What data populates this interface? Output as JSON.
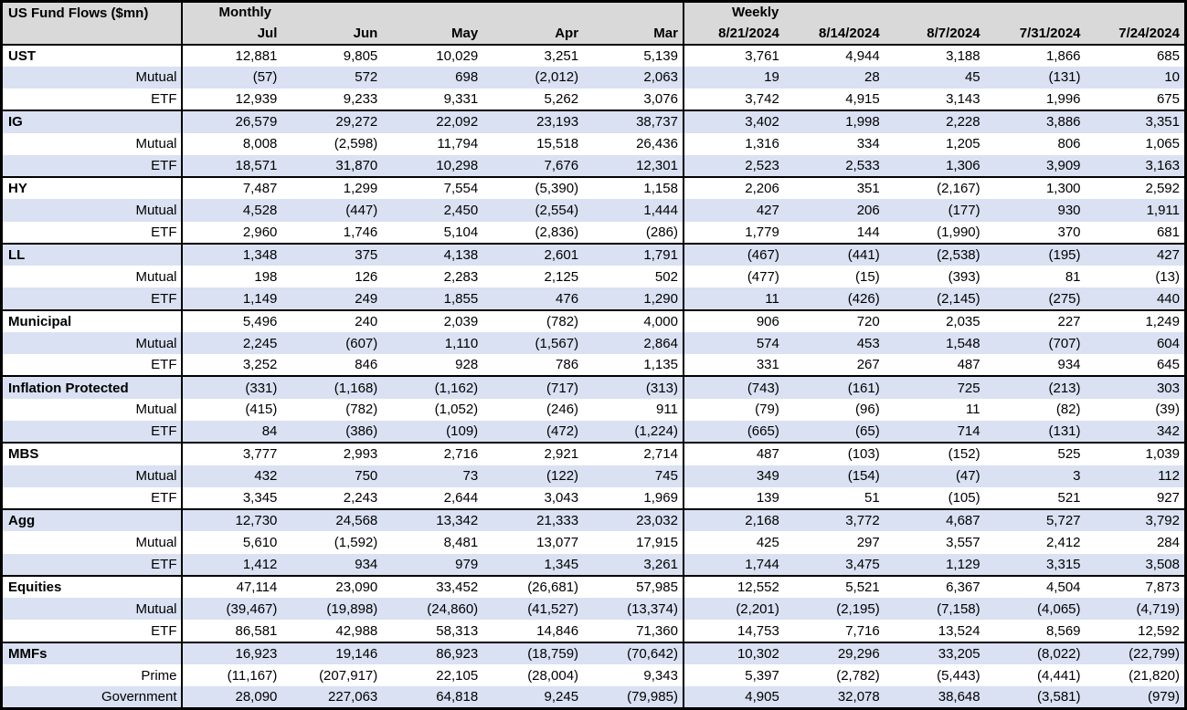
{
  "colors": {
    "stripe": "#D9E1F2",
    "header_bg": "#D9D9D9",
    "text": "#000000",
    "border": "#000000"
  },
  "chart_data": {
    "type": "table",
    "title": "US Fund Flows ($mn)",
    "column_groups": [
      {
        "label": "Monthly",
        "columns": [
          "Jul",
          "Jun",
          "May",
          "Apr",
          "Mar"
        ]
      },
      {
        "label": "Weekly",
        "columns": [
          "8/21/2024",
          "8/14/2024",
          "8/7/2024",
          "7/31/2024",
          "7/24/2024"
        ]
      }
    ],
    "groups": [
      {
        "name": "UST",
        "total": [
          "12,881",
          "9,805",
          "10,029",
          "3,251",
          "5,139",
          "3,761",
          "4,944",
          "3,188",
          "1,866",
          "685"
        ],
        "rows": [
          {
            "label": "Mutual",
            "values": [
              "(57)",
              "572",
              "698",
              "(2,012)",
              "2,063",
              "19",
              "28",
              "45",
              "(131)",
              "10"
            ]
          },
          {
            "label": "ETF",
            "values": [
              "12,939",
              "9,233",
              "9,331",
              "5,262",
              "3,076",
              "3,742",
              "4,915",
              "3,143",
              "1,996",
              "675"
            ]
          }
        ]
      },
      {
        "name": "IG",
        "total": [
          "26,579",
          "29,272",
          "22,092",
          "23,193",
          "38,737",
          "3,402",
          "1,998",
          "2,228",
          "3,886",
          "3,351"
        ],
        "rows": [
          {
            "label": "Mutual",
            "values": [
              "8,008",
              "(2,598)",
              "11,794",
              "15,518",
              "26,436",
              "1,316",
              "334",
              "1,205",
              "806",
              "1,065"
            ]
          },
          {
            "label": "ETF",
            "values": [
              "18,571",
              "31,870",
              "10,298",
              "7,676",
              "12,301",
              "2,523",
              "2,533",
              "1,306",
              "3,909",
              "3,163"
            ]
          }
        ]
      },
      {
        "name": "HY",
        "total": [
          "7,487",
          "1,299",
          "7,554",
          "(5,390)",
          "1,158",
          "2,206",
          "351",
          "(2,167)",
          "1,300",
          "2,592"
        ],
        "rows": [
          {
            "label": "Mutual",
            "values": [
              "4,528",
              "(447)",
              "2,450",
              "(2,554)",
              "1,444",
              "427",
              "206",
              "(177)",
              "930",
              "1,911"
            ]
          },
          {
            "label": "ETF",
            "values": [
              "2,960",
              "1,746",
              "5,104",
              "(2,836)",
              "(286)",
              "1,779",
              "144",
              "(1,990)",
              "370",
              "681"
            ]
          }
        ]
      },
      {
        "name": "LL",
        "total": [
          "1,348",
          "375",
          "4,138",
          "2,601",
          "1,791",
          "(467)",
          "(441)",
          "(2,538)",
          "(195)",
          "427"
        ],
        "rows": [
          {
            "label": "Mutual",
            "values": [
              "198",
              "126",
              "2,283",
              "2,125",
              "502",
              "(477)",
              "(15)",
              "(393)",
              "81",
              "(13)"
            ]
          },
          {
            "label": "ETF",
            "values": [
              "1,149",
              "249",
              "1,855",
              "476",
              "1,290",
              "11",
              "(426)",
              "(2,145)",
              "(275)",
              "440"
            ]
          }
        ]
      },
      {
        "name": "Municipal",
        "total": [
          "5,496",
          "240",
          "2,039",
          "(782)",
          "4,000",
          "906",
          "720",
          "2,035",
          "227",
          "1,249"
        ],
        "rows": [
          {
            "label": "Mutual",
            "values": [
              "2,245",
              "(607)",
              "1,110",
              "(1,567)",
              "2,864",
              "574",
              "453",
              "1,548",
              "(707)",
              "604"
            ]
          },
          {
            "label": "ETF",
            "values": [
              "3,252",
              "846",
              "928",
              "786",
              "1,135",
              "331",
              "267",
              "487",
              "934",
              "645"
            ]
          }
        ]
      },
      {
        "name": "Inflation Protected",
        "total": [
          "(331)",
          "(1,168)",
          "(1,162)",
          "(717)",
          "(313)",
          "(743)",
          "(161)",
          "725",
          "(213)",
          "303"
        ],
        "rows": [
          {
            "label": "Mutual",
            "values": [
              "(415)",
              "(782)",
              "(1,052)",
              "(246)",
              "911",
              "(79)",
              "(96)",
              "11",
              "(82)",
              "(39)"
            ]
          },
          {
            "label": "ETF",
            "values": [
              "84",
              "(386)",
              "(109)",
              "(472)",
              "(1,224)",
              "(665)",
              "(65)",
              "714",
              "(131)",
              "342"
            ]
          }
        ]
      },
      {
        "name": "MBS",
        "total": [
          "3,777",
          "2,993",
          "2,716",
          "2,921",
          "2,714",
          "487",
          "(103)",
          "(152)",
          "525",
          "1,039"
        ],
        "rows": [
          {
            "label": "Mutual",
            "values": [
              "432",
              "750",
              "73",
              "(122)",
              "745",
              "349",
              "(154)",
              "(47)",
              "3",
              "112"
            ]
          },
          {
            "label": "ETF",
            "values": [
              "3,345",
              "2,243",
              "2,644",
              "3,043",
              "1,969",
              "139",
              "51",
              "(105)",
              "521",
              "927"
            ]
          }
        ]
      },
      {
        "name": "Agg",
        "total": [
          "12,730",
          "24,568",
          "13,342",
          "21,333",
          "23,032",
          "2,168",
          "3,772",
          "4,687",
          "5,727",
          "3,792"
        ],
        "rows": [
          {
            "label": "Mutual",
            "values": [
              "5,610",
              "(1,592)",
              "8,481",
              "13,077",
              "17,915",
              "425",
              "297",
              "3,557",
              "2,412",
              "284"
            ]
          },
          {
            "label": "ETF",
            "values": [
              "1,412",
              "934",
              "979",
              "1,345",
              "3,261",
              "1,744",
              "3,475",
              "1,129",
              "3,315",
              "3,508"
            ]
          }
        ]
      },
      {
        "name": "Equities",
        "total": [
          "47,114",
          "23,090",
          "33,452",
          "(26,681)",
          "57,985",
          "12,552",
          "5,521",
          "6,367",
          "4,504",
          "7,873"
        ],
        "rows": [
          {
            "label": "Mutual",
            "values": [
              "(39,467)",
              "(19,898)",
              "(24,860)",
              "(41,527)",
              "(13,374)",
              "(2,201)",
              "(2,195)",
              "(7,158)",
              "(4,065)",
              "(4,719)"
            ]
          },
          {
            "label": "ETF",
            "values": [
              "86,581",
              "42,988",
              "58,313",
              "14,846",
              "71,360",
              "14,753",
              "7,716",
              "13,524",
              "8,569",
              "12,592"
            ]
          }
        ]
      },
      {
        "name": "MMFs",
        "total": [
          "16,923",
          "19,146",
          "86,923",
          "(18,759)",
          "(70,642)",
          "10,302",
          "29,296",
          "33,205",
          "(8,022)",
          "(22,799)"
        ],
        "rows": [
          {
            "label": "Prime",
            "values": [
              "(11,167)",
              "(207,917)",
              "22,105",
              "(28,004)",
              "9,343",
              "5,397",
              "(2,782)",
              "(5,443)",
              "(4,441)",
              "(21,820)"
            ]
          },
          {
            "label": "Government",
            "values": [
              "28,090",
              "227,063",
              "64,818",
              "9,245",
              "(79,985)",
              "4,905",
              "32,078",
              "38,648",
              "(3,581)",
              "(979)"
            ]
          }
        ]
      }
    ]
  }
}
